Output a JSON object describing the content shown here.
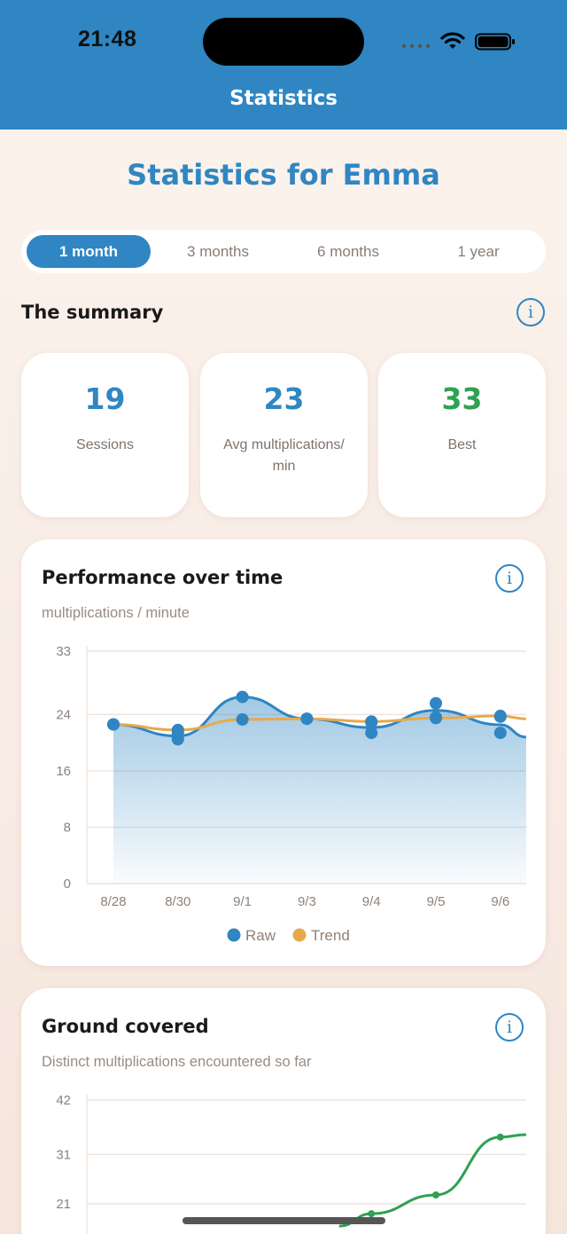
{
  "status_bar": {
    "time": "21:48"
  },
  "nav": {
    "title": "Statistics"
  },
  "page": {
    "heading": "Statistics for Emma"
  },
  "period_tabs": [
    {
      "label": "1 month",
      "selected": true
    },
    {
      "label": "3 months",
      "selected": false
    },
    {
      "label": "6 months",
      "selected": false
    },
    {
      "label": "1 year",
      "selected": false
    }
  ],
  "summary": {
    "title": "The summary",
    "info_icon": "info-icon",
    "cards": [
      {
        "value": "19",
        "label": "Sessions",
        "color": "#2f86c2"
      },
      {
        "value": "23",
        "label": "Avg multiplications/ min",
        "color": "#2f86c2"
      },
      {
        "value": "33",
        "label": "Best",
        "color": "#2fa152"
      }
    ]
  },
  "performance": {
    "title": "Performance over time",
    "subtitle": "multiplications / minute",
    "legend": [
      "Raw",
      "Trend"
    ]
  },
  "ground": {
    "title": "Ground covered",
    "subtitle": "Distinct multiplications encountered so far"
  },
  "colors": {
    "brand": "#2f86c2",
    "raw": "#2f86c2",
    "trend": "#e8a94b",
    "best": "#2fa152",
    "ground_line": "#2fa152"
  },
  "chart_data": [
    {
      "type": "line",
      "title": "Performance over time",
      "ylabel": "multiplications / minute",
      "categories": [
        "8/28",
        "8/30",
        "9/1",
        "9/3",
        "9/4",
        "9/5",
        "9/6"
      ],
      "yticks": [
        "0",
        "8",
        "16",
        "24",
        "33"
      ],
      "ylim": [
        0,
        33
      ],
      "legend_position": "bottom",
      "grid": true,
      "series": [
        {
          "name": "Raw",
          "color": "#2f86c2",
          "points": [
            [
              0,
              22.6
            ],
            [
              1,
              21.4
            ],
            [
              1,
              20.5
            ],
            [
              2,
              26.5
            ],
            [
              3,
              23.4
            ],
            [
              4,
              22.9
            ],
            [
              4,
              21.4
            ],
            [
              5,
              25.6
            ],
            [
              5,
              23.6
            ],
            [
              6,
              23.7
            ],
            [
              6,
              21.4
            ]
          ],
          "tail": [
            6.4,
            20.8
          ]
        },
        {
          "name": "Trend",
          "color": "#e8a94b",
          "points": [
            [
              0,
              22.6
            ],
            [
              1,
              21.8
            ],
            [
              2,
              23.3
            ],
            [
              3,
              23.4
            ],
            [
              4,
              23.0
            ],
            [
              5,
              23.5
            ],
            [
              6,
              23.8
            ]
          ],
          "tail": [
            6.4,
            23.4
          ]
        }
      ]
    },
    {
      "type": "line",
      "title": "Ground covered",
      "ylabel": "Distinct multiplications encountered so far",
      "yticks": [
        "21",
        "31",
        "42"
      ],
      "ylim": [
        0,
        42
      ],
      "grid": true,
      "series": [
        {
          "name": "",
          "color": "#2fa152",
          "points": [
            [
              4,
              19.0
            ],
            [
              5,
              22.8
            ],
            [
              6,
              34.5
            ]
          ],
          "tail": [
            6.4,
            35.0
          ]
        }
      ]
    }
  ]
}
